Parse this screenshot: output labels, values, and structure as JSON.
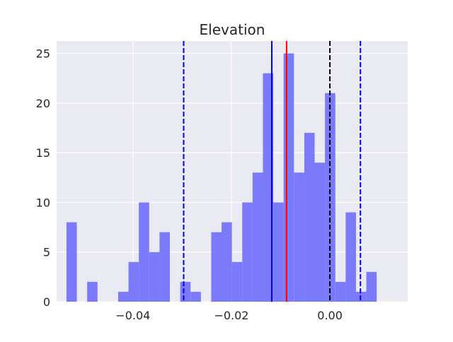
{
  "chart_data": {
    "type": "bar",
    "title": "Elevation",
    "xlabel": "",
    "ylabel": "",
    "xlim": [
      -0.0555,
      0.0158
    ],
    "ylim": [
      0,
      26.25
    ],
    "grid": true,
    "background": "#EAEAF2",
    "bar_color": "#7A7AFA",
    "x_ticks": [
      {
        "value": -0.04,
        "label": "−0.04"
      },
      {
        "value": -0.02,
        "label": "−0.02"
      },
      {
        "value": 0.0,
        "label": "0.00"
      }
    ],
    "y_ticks": [
      {
        "value": 0,
        "label": "0"
      },
      {
        "value": 5,
        "label": "5"
      },
      {
        "value": 10,
        "label": "10"
      },
      {
        "value": 15,
        "label": "15"
      },
      {
        "value": 20,
        "label": "20"
      },
      {
        "value": 25,
        "label": "25"
      }
    ],
    "bin_start": -0.0535,
    "bin_width": 0.0021,
    "counts": [
      8,
      0,
      2,
      0,
      0,
      1,
      4,
      10,
      5,
      7,
      0,
      2,
      1,
      0,
      7,
      8,
      4,
      10,
      13,
      23,
      10,
      25,
      13,
      17,
      14,
      21,
      2,
      9,
      1,
      3
    ],
    "vlines": [
      {
        "x": -0.0297,
        "color": "#0000FF",
        "style": "dashed"
      },
      {
        "x": -0.0118,
        "color": "#0000FF",
        "style": "solid"
      },
      {
        "x": -0.0088,
        "color": "#FF0000",
        "style": "solid"
      },
      {
        "x": 0.0,
        "color": "#000000",
        "style": "dashed"
      },
      {
        "x": 0.0062,
        "color": "#0000FF",
        "style": "dashed"
      }
    ]
  }
}
